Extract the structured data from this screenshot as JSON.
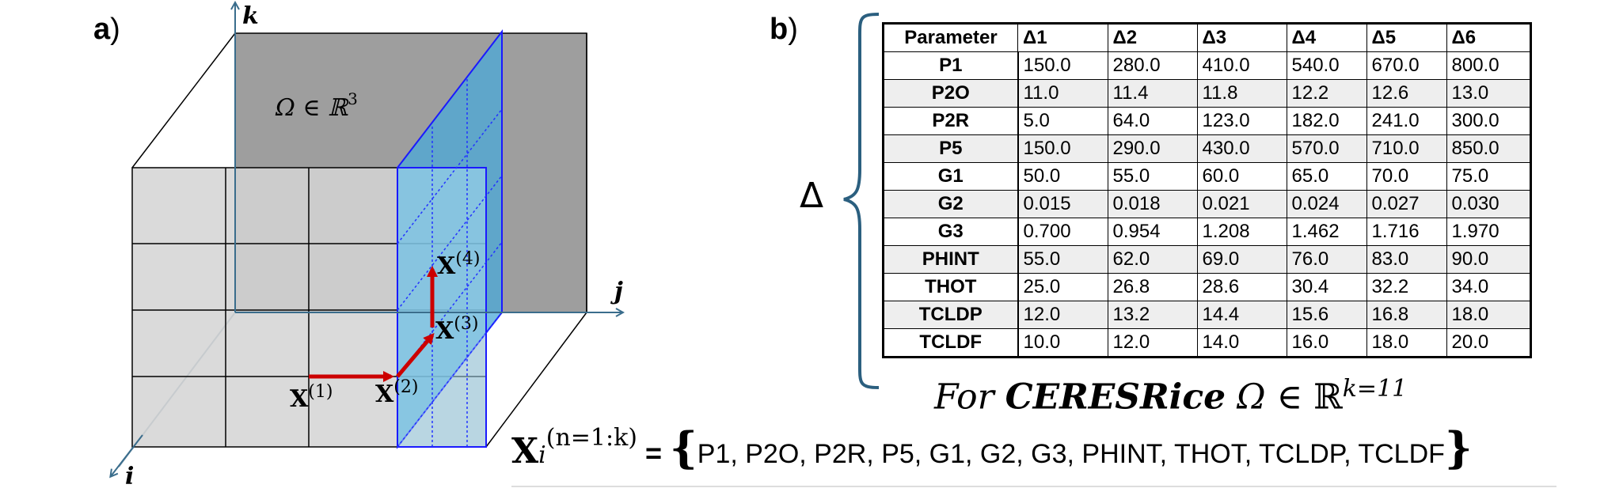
{
  "panel_a": {
    "label_letter": "a",
    "label_paren": ")",
    "axes": {
      "k": "k",
      "j": "j",
      "i": "i"
    },
    "domain_label": "Ω ∈ ℝ",
    "domain_sup": "3",
    "points": [
      {
        "name": "X",
        "sup": "(1)"
      },
      {
        "name": "X",
        "sup": "(2)"
      },
      {
        "name": "X",
        "sup": "(3)"
      },
      {
        "name": "X",
        "sup": "(4)"
      }
    ],
    "colors": {
      "cube_face_light": "#d3d3d3",
      "cube_face_dark": "#9e9e9e",
      "slice_fill": "#4aa8d8",
      "slice_edge": "#1a1aff",
      "arrow": "#cc0000",
      "axis": "#3a6d8c"
    }
  },
  "panel_b": {
    "label_letter": "b",
    "label_paren": ")",
    "delta_symbol": "Δ",
    "headers": [
      "Parameter",
      "Δ1",
      "Δ2",
      "Δ3",
      "Δ4",
      "Δ5",
      "Δ6"
    ],
    "rows": [
      {
        "name": "P1",
        "values": [
          "150.0",
          "280.0",
          "410.0",
          "540.0",
          "670.0",
          "800.0"
        ]
      },
      {
        "name": "P2O",
        "values": [
          "11.0",
          "11.4",
          "11.8",
          "12.2",
          "12.6",
          "13.0"
        ]
      },
      {
        "name": "P2R",
        "values": [
          "5.0",
          "64.0",
          "123.0",
          "182.0",
          "241.0",
          "300.0"
        ]
      },
      {
        "name": "P5",
        "values": [
          "150.0",
          "290.0",
          "430.0",
          "570.0",
          "710.0",
          "850.0"
        ]
      },
      {
        "name": "G1",
        "values": [
          "50.0",
          "55.0",
          "60.0",
          "65.0",
          "70.0",
          "75.0"
        ]
      },
      {
        "name": "G2",
        "values": [
          "0.015",
          "0.018",
          "0.021",
          "0.024",
          "0.027",
          "0.030"
        ]
      },
      {
        "name": "G3",
        "values": [
          "0.700",
          "0.954",
          "1.208",
          "1.462",
          "1.716",
          "1.970"
        ]
      },
      {
        "name": "PHINT",
        "values": [
          "55.0",
          "62.0",
          "69.0",
          "76.0",
          "83.0",
          "90.0"
        ]
      },
      {
        "name": "THOT",
        "values": [
          "25.0",
          "26.8",
          "28.6",
          "30.4",
          "32.2",
          "34.0"
        ]
      },
      {
        "name": "TCLDP",
        "values": [
          "12.0",
          "13.2",
          "14.4",
          "15.6",
          "16.8",
          "18.0"
        ]
      },
      {
        "name": "TCLDF",
        "values": [
          "10.0",
          "12.0",
          "14.0",
          "16.0",
          "18.0",
          "20.0"
        ]
      }
    ],
    "for_line": {
      "prefix": "For ",
      "model": "CERESRice",
      "omega": " Ω ∈ ",
      "real": "ℝ",
      "sup": "k=11"
    }
  },
  "xi_line": {
    "symbol": "X",
    "sub": "i",
    "sup": "(n=1:k)",
    "equals": " = ",
    "open_brace": "{",
    "set": "P1, P2O, P2R, P5, G1, G2, G3, PHINT, THOT, TCLDP, TCLDF",
    "close_brace": "}"
  }
}
